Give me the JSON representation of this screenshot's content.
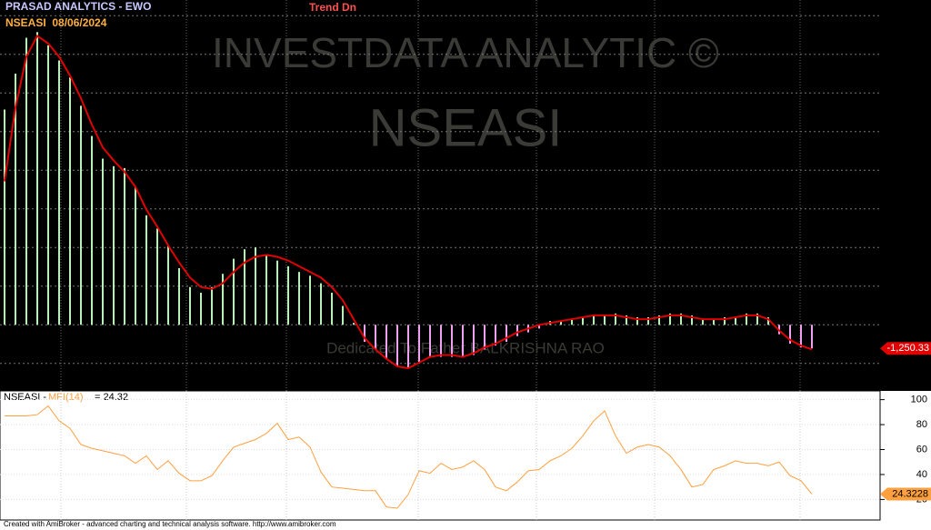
{
  "chart_data": [
    {
      "type": "bar",
      "title": "PRASAD ANALYTICS - EWO",
      "subtitle": "NSEASI  08/06/2024",
      "annotation": "Trend Dn",
      "watermark": [
        "INVESTDATA ANALYTIC ©",
        "NSEASI"
      ],
      "dedication": "Dedicated To Father BALKRISHNA RAO",
      "values": [
        11400,
        13300,
        15200,
        15500,
        14800,
        14000,
        13100,
        11600,
        10000,
        8800,
        8400,
        8300,
        7300,
        5800,
        5100,
        4200,
        3000,
        2000,
        1700,
        2000,
        2700,
        3500,
        4000,
        4100,
        3700,
        3400,
        3100,
        2800,
        2600,
        2200,
        1700,
        1000,
        100,
        -900,
        -1300,
        -1800,
        -2200,
        -2300,
        -2000,
        -1700,
        -1700,
        -1700,
        -1700,
        -1600,
        -1300,
        -1100,
        -900,
        -600,
        -400,
        -200,
        200,
        200,
        300,
        400,
        500,
        500,
        600,
        500,
        400,
        400,
        500,
        600,
        600,
        500,
        300,
        300,
        400,
        400,
        600,
        600,
        400,
        -500,
        -1000,
        -1200,
        -1250.33
      ],
      "last_value_label": "-1,250.33",
      "positive_color": "#b8f0b8",
      "negative_color": "#f0a0f0",
      "line": {
        "color": "#e00000",
        "values": [
          7600,
          11500,
          14200,
          15300,
          14900,
          14200,
          13200,
          12000,
          10600,
          9400,
          8700,
          8100,
          7300,
          6100,
          5200,
          4200,
          3300,
          2500,
          2000,
          1900,
          2200,
          2800,
          3300,
          3600,
          3700,
          3600,
          3400,
          3100,
          2800,
          2500,
          2000,
          1300,
          300,
          -700,
          -1300,
          -1800,
          -2200,
          -2300,
          -2000,
          -1700,
          -1600,
          -1600,
          -1700,
          -1500,
          -1200,
          -1000,
          -700,
          -400,
          -200,
          0,
          100,
          200,
          300,
          400,
          500,
          500,
          500,
          400,
          300,
          300,
          400,
          500,
          500,
          400,
          300,
          300,
          300,
          400,
          500,
          500,
          300,
          -300,
          -800,
          -1100,
          -1300
        ]
      },
      "ylim": [
        -3500,
        17200
      ],
      "grid": true
    },
    {
      "type": "line",
      "title_prefix": "NSEASI -",
      "series_name": "MFI(14)",
      "current_label": "= 24.32",
      "color": "#ffa040",
      "values": [
        87,
        87,
        87,
        88,
        95,
        83,
        77,
        64,
        61,
        59,
        57,
        55,
        49,
        55,
        44,
        51,
        41,
        35,
        35,
        39,
        51,
        62,
        65,
        68,
        73,
        81,
        68,
        70,
        62,
        42,
        30,
        29,
        28,
        27,
        27,
        14,
        13,
        24,
        43,
        41,
        49,
        44,
        46,
        51,
        44,
        30,
        27,
        34,
        43,
        44,
        51,
        55,
        61,
        71,
        83,
        91,
        71,
        57,
        62,
        64,
        62,
        55,
        44,
        30,
        32,
        44,
        47,
        51,
        49,
        49,
        47,
        50,
        39,
        35,
        24.3228
      ],
      "last_value_label": "24.3228",
      "ylim": [
        5,
        107
      ],
      "yticks": [
        20,
        40,
        60,
        80,
        100
      ],
      "grid": true
    },
    {
      "footer": "Created with AmiBroker - advanced charting and technical analysis software. http://www.amibroker.com"
    }
  ]
}
